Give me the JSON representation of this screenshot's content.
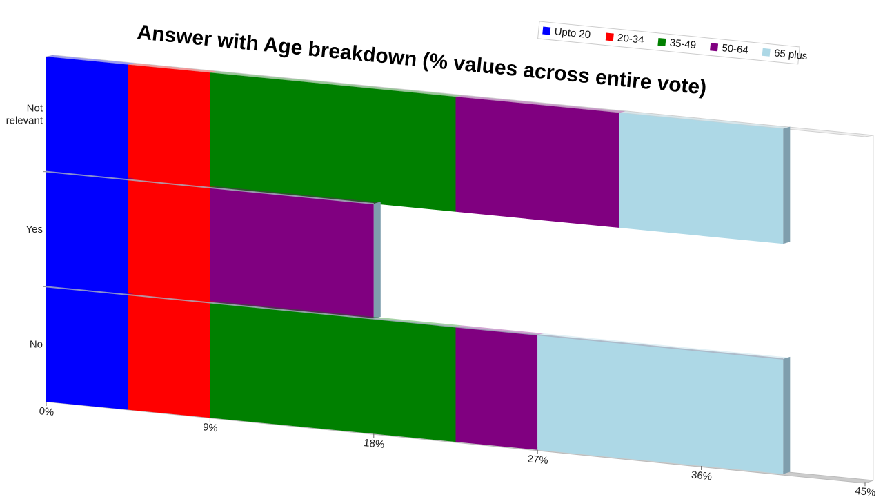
{
  "chart_data": {
    "type": "bar",
    "orientation": "horizontal",
    "stacked": true,
    "title": "Answer with Age breakdown (% values across entire vote)",
    "xlabel": "",
    "ylabel": "",
    "categories": [
      "Not relevant",
      "Yes",
      "No"
    ],
    "category_lines": [
      [
        "Not",
        "relevant"
      ],
      [
        "Yes"
      ],
      [
        "No"
      ]
    ],
    "xlim": [
      0,
      45
    ],
    "x_ticks": [
      "0%",
      "9%",
      "18%",
      "27%",
      "36%",
      "45%"
    ],
    "x_tick_values": [
      0,
      9,
      18,
      27,
      36,
      45
    ],
    "series": [
      {
        "name": "Upto 20",
        "color": "#0000ff",
        "values": [
          4.5,
          4.5,
          4.5
        ]
      },
      {
        "name": "20-34",
        "color": "#ff0000",
        "values": [
          4.5,
          4.5,
          4.5
        ]
      },
      {
        "name": "35-49",
        "color": "#008000",
        "values": [
          13.5,
          0,
          13.5
        ]
      },
      {
        "name": "50-64",
        "color": "#800080",
        "values": [
          9,
          9,
          4.5
        ]
      },
      {
        "name": "65 plus",
        "color": "#add8e6",
        "values": [
          9,
          0,
          13.5
        ]
      }
    ],
    "legend_position": "top-right",
    "grid": false
  }
}
